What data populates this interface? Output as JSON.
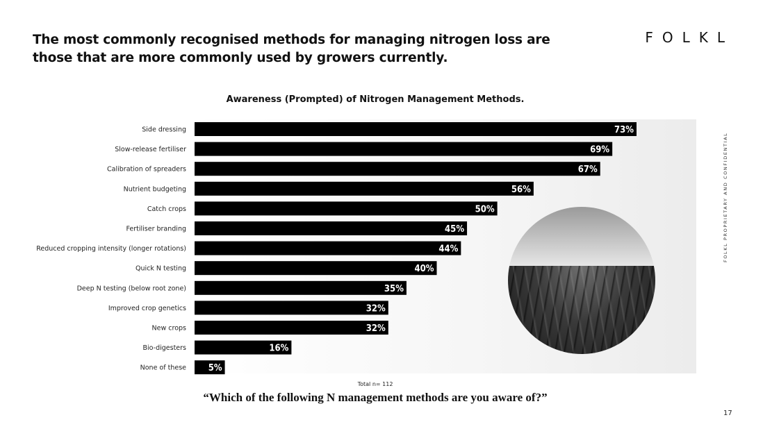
{
  "headline": "The most commonly recognised methods for managing nitrogen loss are those that are more commonly used by growers currently.",
  "brand": "FOLKL",
  "side_text": "FOLKL PROPRIETARY AND CONFIDENTIAL",
  "footer": {
    "total": "Total n= 112",
    "question": "“Which of the following N management methods are you aware of?”",
    "page_number": "17"
  },
  "chart_data": {
    "type": "bar",
    "orientation": "horizontal",
    "title": "Awareness (Prompted) of Nitrogen Management Methods.",
    "categories": [
      "Side dressing",
      "Slow-release fertiliser",
      "Calibration of spreaders",
      "Nutrient budgeting",
      "Catch crops",
      "Fertiliser branding",
      "Reduced cropping intensity (longer rotations)",
      "Quick N testing",
      "Deep N testing (below root zone)",
      "Improved crop genetics",
      "New crops",
      "Bio-digesters",
      "None of these"
    ],
    "values": [
      73,
      69,
      67,
      56,
      50,
      45,
      44,
      40,
      35,
      32,
      32,
      16,
      5
    ],
    "value_suffix": "%",
    "xlim": [
      0,
      100
    ],
    "grid": false,
    "colors": {
      "bar": "#000000",
      "label_text": "#ffffff"
    }
  }
}
